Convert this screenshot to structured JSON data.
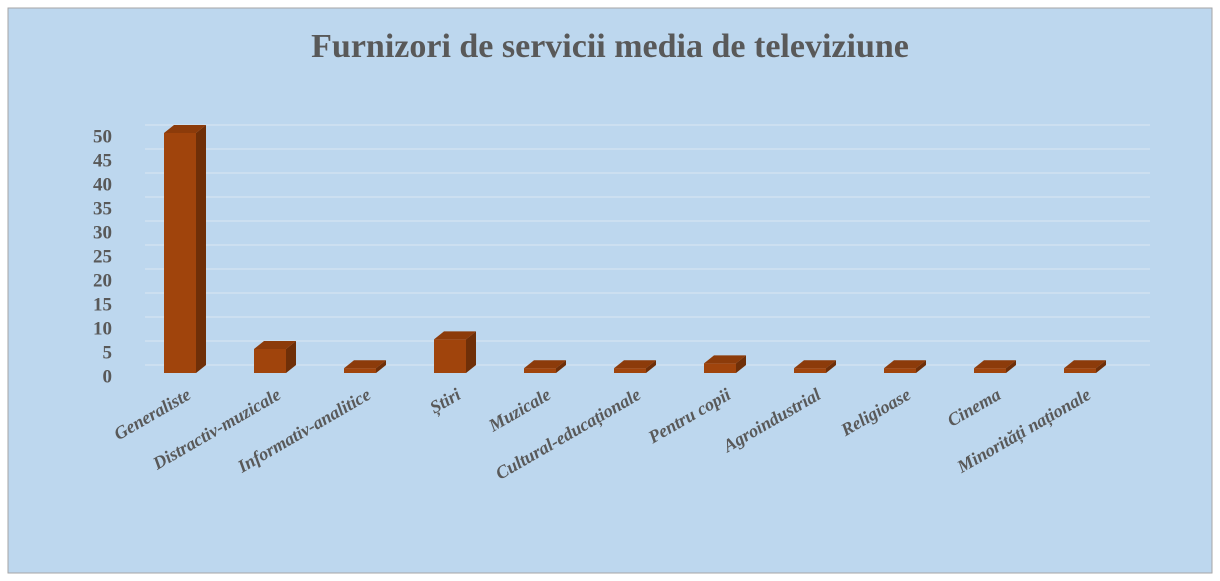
{
  "chart_data": {
    "type": "bar3d",
    "title": "Furnizori de servicii media de televiziune",
    "categories": [
      "Generaliste",
      "Distractiv-muzicale",
      "Informativ-analitice",
      "Știri",
      "Muzicale",
      "Cultural-educaționale",
      "Pentru copii",
      "Agroindustrial",
      "Religioase",
      "Cinema",
      "Minorități naționale"
    ],
    "values": [
      50,
      5,
      1,
      7,
      1,
      1,
      2,
      1,
      1,
      1,
      1
    ],
    "color": "#a0440c",
    "ylim": [
      0,
      50
    ],
    "yticks": [
      0,
      5,
      10,
      15,
      20,
      25,
      30,
      35,
      40,
      45,
      50
    ],
    "grid": true
  }
}
